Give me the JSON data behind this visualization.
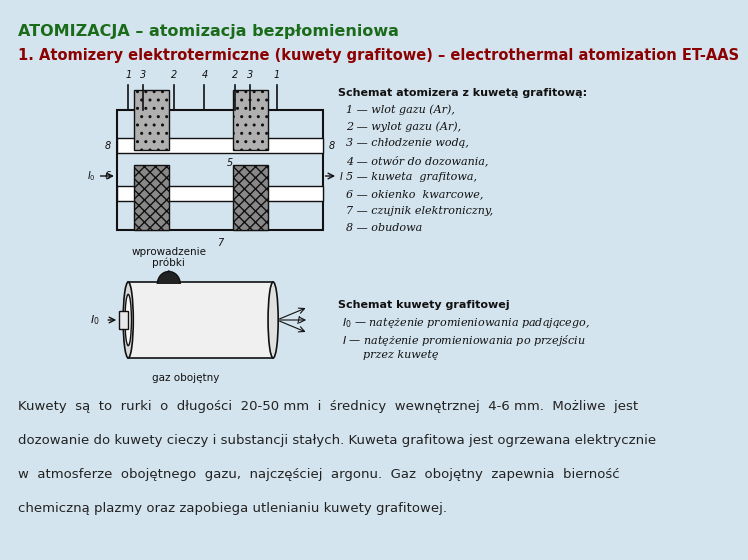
{
  "bg_color": "#d4e4ee",
  "title": "ATOMIZACJA – atomizacja bezpłomieniowa",
  "title_color": "#1a6b1a",
  "title_fontsize": 11.5,
  "subtitle": "1. Atomizery elektrotermiczne (kuwety grafitowe) – electrothermal atomization ET-AAS",
  "subtitle_color": "#8b0000",
  "subtitle_fontsize": 10.5,
  "body_lines": [
    "Kuwety  są  to  rurki  o  długości  20-50 mm  i  średnicy  wewnętrznej  4-6 mm.  Możliwe  jest",
    "dozowanie do kuwety cieczy i substancji stałych. Kuweta grafitowa jest ogrzewana elektrycznie",
    "w  atmosferze  obojętnego  gazu,  najczęściej  argonu.  Gaz  obojętny  zapewnia  bierność",
    "chemiczną plazmy oraz zapobiega utlenianiu kuwety grafitowej."
  ],
  "body_color": "#222222",
  "body_fontsize": 9.5,
  "legend1_title": "Schemat atomizera z kuwetą grafitową:",
  "legend1_lines": [
    "1 — wlot gazu (Ar),",
    "2 — wylot gazu (Ar),",
    "3 — chłodzenie wodą,",
    "4 — otwór do dozowania,",
    "5 — kuweta  grafitowa,",
    "6 — okienko  kwarcowe,",
    "7 — czujnik elektroniczny,",
    "8 — obudowa"
  ],
  "legend2_title": "Schemat kuwety grafitowej",
  "legend2_lines": [
    "$I_0$ — natężenie promieniowania padającego,",
    "$I$ — natężenie promieniowania po przejściu",
    "      przez kuwetę"
  ]
}
